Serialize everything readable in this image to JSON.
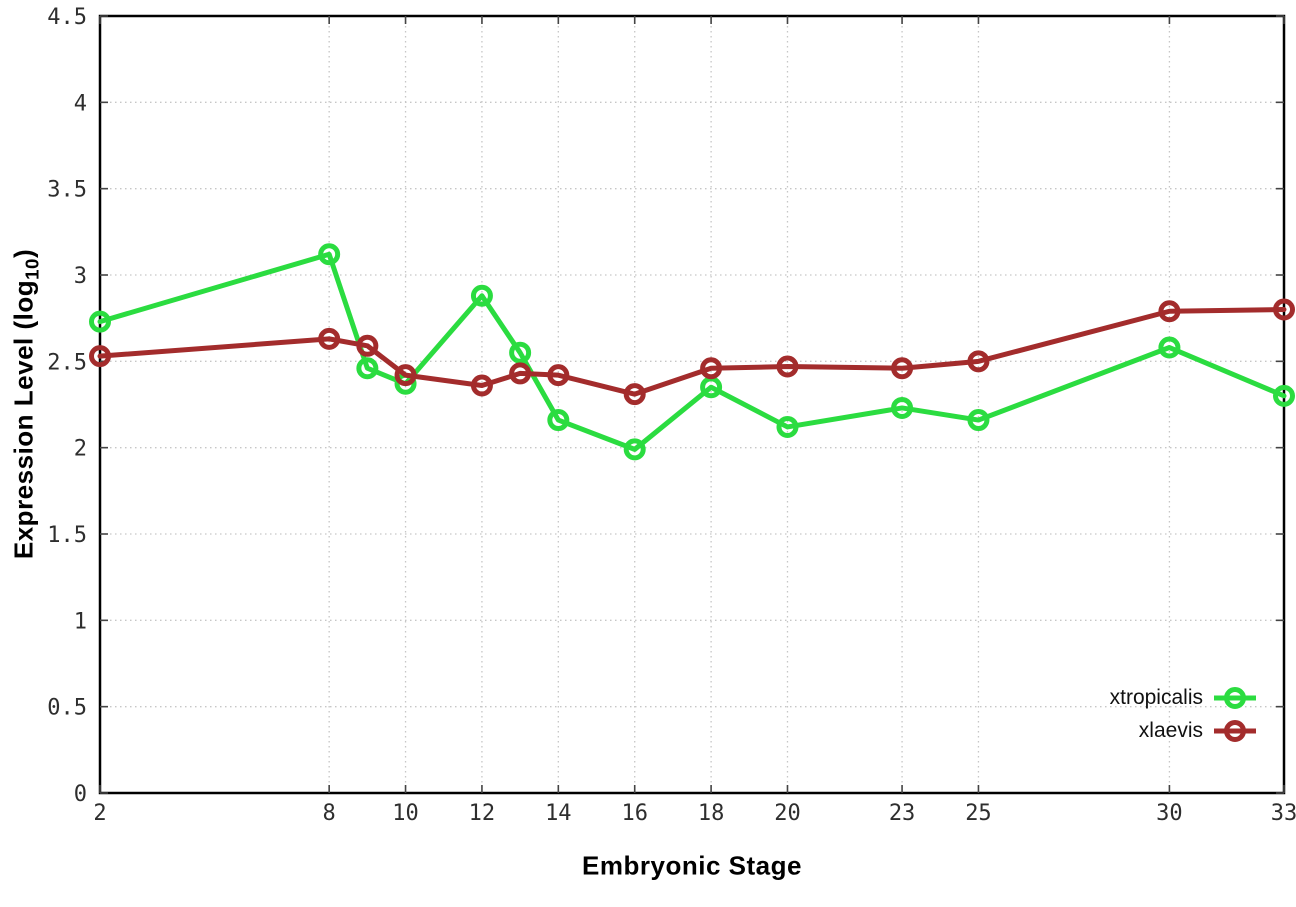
{
  "figure": {
    "background": "#ffffff",
    "border_color": "#000000",
    "grid_color": "#c6c6c6",
    "tick_color": "#444444",
    "tick_text_color": "#2e2e2e"
  },
  "chart_data": {
    "type": "line",
    "title": "",
    "xlabel": "Embryonic Stage",
    "ylabel": "Expression Level (log10)",
    "ylabel_parts": {
      "main": "Expression Level (log",
      "sub": "10",
      "end": ")"
    },
    "xlim": [
      2,
      33
    ],
    "ylim": [
      0,
      4.5
    ],
    "grid": true,
    "legend_position": "bottom-right",
    "x_ticks": [
      2,
      8,
      10,
      12,
      14,
      16,
      18,
      20,
      23,
      25,
      30,
      33
    ],
    "x_tick_labels": [
      "2",
      "8",
      "10",
      "12",
      "14",
      "16",
      "18",
      "20",
      "23",
      "25",
      "30",
      "33"
    ],
    "y_ticks": [
      0,
      0.5,
      1,
      1.5,
      2,
      2.5,
      3,
      3.5,
      4,
      4.5
    ],
    "y_tick_labels": [
      "0",
      "0.5",
      "1",
      "1.5",
      "2",
      "2.5",
      "3",
      "3.5",
      "4",
      "4.5"
    ],
    "x": [
      2,
      8,
      9,
      10,
      12,
      13,
      14,
      16,
      18,
      20,
      23,
      25,
      30,
      33
    ],
    "series": [
      {
        "name": "xtropicalis",
        "color": "#2bdc40",
        "marker": "open-circle",
        "values": [
          2.73,
          3.12,
          2.46,
          2.37,
          2.88,
          2.55,
          2.16,
          1.99,
          2.35,
          2.12,
          2.23,
          2.16,
          2.58,
          2.3
        ]
      },
      {
        "name": "xlaevis",
        "color": "#a32c2c",
        "marker": "open-circle",
        "values": [
          2.53,
          2.63,
          2.59,
          2.42,
          2.36,
          2.43,
          2.42,
          2.31,
          2.46,
          2.47,
          2.46,
          2.5,
          2.79,
          2.8
        ]
      }
    ]
  }
}
